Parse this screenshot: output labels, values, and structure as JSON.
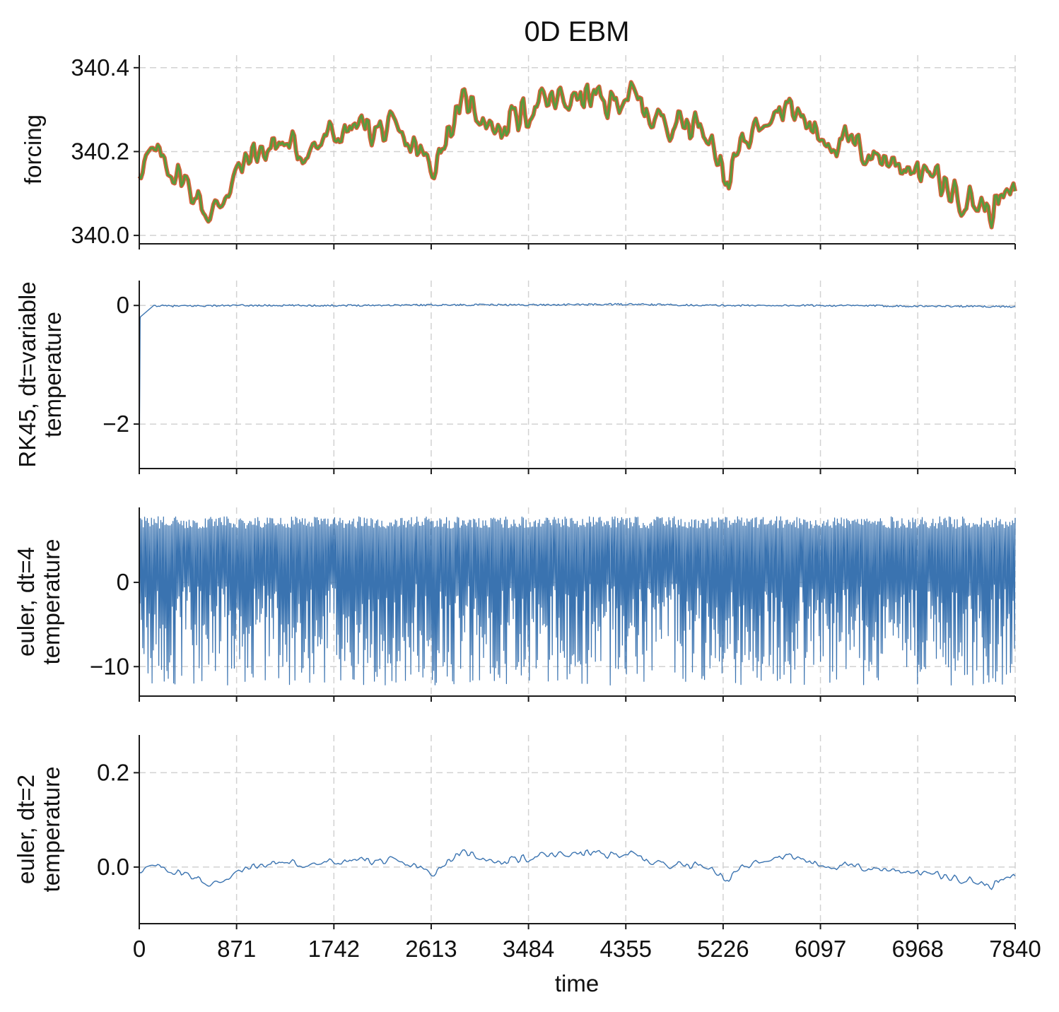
{
  "chart_data": {
    "title": "0D EBM",
    "xlabel": "time",
    "xlim": [
      0,
      7840
    ],
    "xticks": [
      0,
      871,
      1742,
      2613,
      3484,
      4355,
      5226,
      6097,
      6968,
      7840
    ],
    "xtick_labels": [
      "0",
      "871",
      "1742",
      "2613",
      "3484",
      "4355",
      "5226",
      "6097",
      "6968",
      "7840"
    ],
    "grid": true,
    "panels": [
      {
        "type": "line",
        "ylabel": [
          "forcing"
        ],
        "ylim": [
          339.98,
          340.43
        ],
        "yticks": [
          340.0,
          340.2,
          340.4
        ],
        "ytick_labels": [
          "340.0",
          "340.2",
          "340.4"
        ],
        "series": [
          {
            "color": "#d9603b",
            "width": 6,
            "pattern": "forcing",
            "x": [
              0,
              160,
              330,
              500,
              640,
              800,
              1000,
              1250,
              1500,
              1750,
              2000,
              2300,
              2500,
              2613,
              2800,
              2950,
              3200,
              3484,
              3700,
              4000,
              4200,
              4355,
              4600,
              4900,
              5100,
              5250,
              5400,
              5600,
              5800,
              6097,
              6400,
              6700,
              6968,
              7200,
              7400,
              7600,
              7840
            ],
            "values": [
              340.17,
              340.19,
              340.15,
              340.1,
              340.04,
              340.12,
              340.19,
              340.22,
              340.2,
              340.24,
              340.26,
              340.24,
              340.2,
              340.16,
              340.27,
              340.32,
              340.25,
              340.3,
              340.32,
              340.33,
              340.31,
              340.34,
              340.28,
              340.27,
              340.26,
              340.12,
              340.22,
              340.3,
              340.31,
              340.24,
              340.21,
              340.18,
              340.16,
              340.12,
              340.09,
              340.06,
              340.1
            ]
          },
          {
            "color": "#5a9a3c",
            "width": 3,
            "pattern": "forcing",
            "x": [
              0,
              160,
              330,
              500,
              640,
              800,
              1000,
              1250,
              1500,
              1750,
              2000,
              2300,
              2500,
              2613,
              2800,
              2950,
              3200,
              3484,
              3700,
              4000,
              4200,
              4355,
              4600,
              4900,
              5100,
              5250,
              5400,
              5600,
              5800,
              6097,
              6400,
              6700,
              6968,
              7200,
              7400,
              7600,
              7840
            ],
            "values": [
              340.17,
              340.19,
              340.15,
              340.1,
              340.04,
              340.12,
              340.19,
              340.22,
              340.2,
              340.24,
              340.26,
              340.24,
              340.2,
              340.16,
              340.27,
              340.32,
              340.25,
              340.3,
              340.32,
              340.33,
              340.31,
              340.34,
              340.28,
              340.27,
              340.26,
              340.12,
              340.22,
              340.3,
              340.31,
              340.24,
              340.21,
              340.18,
              340.16,
              340.12,
              340.09,
              340.06,
              340.1
            ]
          }
        ]
      },
      {
        "type": "line",
        "ylabel": [
          "RK45, dt=variable",
          "temperature"
        ],
        "ylim": [
          -2.75,
          0.42
        ],
        "yticks": [
          -2,
          0
        ],
        "ytick_labels": [
          "−2",
          "0"
        ],
        "series": [
          {
            "color": "#3a73b0",
            "width": 1.4,
            "pattern": "rk45",
            "x": [
              0,
              8,
              30,
              300,
              871,
              1742,
              2613,
              3484,
              4355,
              5226,
              6097,
              6968,
              7840
            ],
            "values": [
              -2.65,
              -0.2,
              0.0,
              -0.01,
              0.0,
              0.0,
              0.01,
              0.01,
              0.02,
              0.0,
              0.0,
              -0.01,
              -0.02
            ]
          }
        ]
      },
      {
        "type": "line",
        "ylabel": [
          "euler, dt=4",
          "temperature"
        ],
        "ylim": [
          -13.5,
          8.9
        ],
        "yticks": [
          -10,
          0
        ],
        "ytick_labels": [
          "−10",
          "0"
        ],
        "series": [
          {
            "color": "#3a73b0",
            "width": 1.2,
            "pattern": "oscillation",
            "x": [
              0,
              7840
            ],
            "values_upper": [
              7.8,
              7.8
            ],
            "values_lower": [
              -12.2,
              -12.2
            ],
            "values_center": [
              2.0,
              2.0
            ]
          }
        ]
      },
      {
        "type": "line",
        "ylabel": [
          "euler, dt=2",
          "temperature"
        ],
        "ylim": [
          -0.12,
          0.28
        ],
        "yticks": [
          0.0,
          0.2
        ],
        "ytick_labels": [
          "0.0",
          "0.2"
        ],
        "series": [
          {
            "color": "#3a73b0",
            "width": 1.4,
            "pattern": "forcing",
            "x": [
              0,
              160,
              330,
              500,
              640,
              800,
              1000,
              1250,
              1500,
              1750,
              2000,
              2300,
              2500,
              2613,
              2800,
              2950,
              3200,
              3484,
              3700,
              4000,
              4200,
              4355,
              4600,
              4900,
              5100,
              5250,
              5400,
              5600,
              5800,
              6097,
              6400,
              6700,
              6968,
              7200,
              7400,
              7600,
              7840
            ],
            "values": [
              -0.005,
              0.0,
              -0.01,
              -0.02,
              -0.04,
              -0.02,
              0.0,
              0.01,
              0.005,
              0.01,
              0.015,
              0.01,
              0.0,
              -0.015,
              0.02,
              0.03,
              0.01,
              0.02,
              0.025,
              0.03,
              0.025,
              0.03,
              0.01,
              0.005,
              0.005,
              -0.03,
              0.0,
              0.02,
              0.025,
              0.005,
              0.0,
              -0.005,
              -0.01,
              -0.02,
              -0.025,
              -0.04,
              -0.02
            ]
          }
        ]
      }
    ]
  }
}
